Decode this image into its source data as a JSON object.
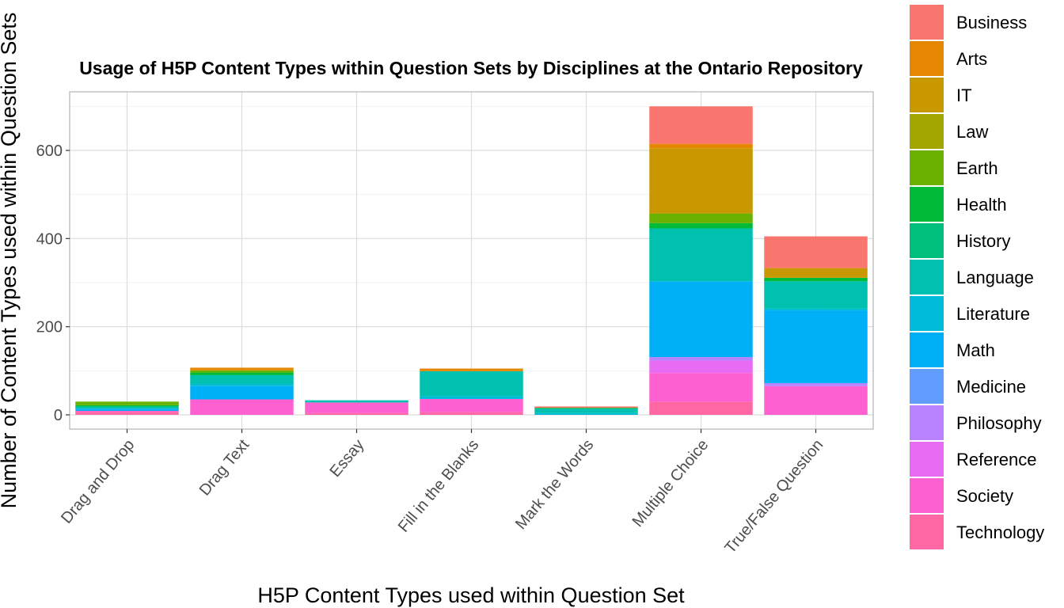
{
  "chart_data": {
    "type": "bar",
    "stacked": true,
    "title": "Usage of H5P Content Types within Question Sets by Disciplines at the Ontario Repository",
    "xlabel": "H5P Content Types used within Question Set",
    "ylabel": "Number of Content Types used within Question Sets",
    "ylim": [
      -35,
      730
    ],
    "yticks": [
      0,
      200,
      400,
      600
    ],
    "grid": true,
    "legend_position": "right",
    "categories": [
      "Drag and Drop",
      "Drag Text",
      "Essay",
      "Fill in the Blanks",
      "Mark the Words",
      "Multiple Choice",
      "True/False Question"
    ],
    "series": [
      {
        "name": "Business",
        "color": "#F8766D",
        "values": [
          0,
          0,
          0,
          0,
          3,
          85,
          72
        ]
      },
      {
        "name": "Arts",
        "color": "#E58700",
        "values": [
          0,
          6,
          0,
          6,
          0,
          10,
          0
        ]
      },
      {
        "name": "IT",
        "color": "#C99800",
        "values": [
          0,
          0,
          0,
          0,
          0,
          148,
          22
        ]
      },
      {
        "name": "Law",
        "color": "#A3A500",
        "values": [
          0,
          0,
          0,
          0,
          0,
          0,
          0
        ]
      },
      {
        "name": "Earth",
        "color": "#6BB100",
        "values": [
          8,
          5,
          0,
          0,
          0,
          22,
          0
        ]
      },
      {
        "name": "Health",
        "color": "#00BA38",
        "values": [
          3,
          6,
          0,
          0,
          2,
          12,
          8
        ]
      },
      {
        "name": "History",
        "color": "#00BF7D",
        "values": [
          0,
          0,
          0,
          0,
          0,
          0,
          0
        ]
      },
      {
        "name": "Language",
        "color": "#00C0AF",
        "values": [
          5,
          20,
          5,
          57,
          10,
          120,
          62
        ]
      },
      {
        "name": "Literature",
        "color": "#00BCD8",
        "values": [
          0,
          5,
          0,
          6,
          4,
          0,
          4
        ]
      },
      {
        "name": "Math",
        "color": "#00B0F6",
        "values": [
          5,
          30,
          0,
          0,
          0,
          172,
          165
        ]
      },
      {
        "name": "Medicine",
        "color": "#619CFF",
        "values": [
          0,
          0,
          0,
          0,
          0,
          0,
          0
        ]
      },
      {
        "name": "Philosophy",
        "color": "#B983FF",
        "values": [
          0,
          0,
          0,
          0,
          0,
          8,
          7
        ]
      },
      {
        "name": "Reference",
        "color": "#E76BF3",
        "values": [
          0,
          0,
          0,
          0,
          0,
          28,
          0
        ]
      },
      {
        "name": "Society",
        "color": "#FD61D1",
        "values": [
          2,
          35,
          24,
          30,
          0,
          65,
          65
        ]
      },
      {
        "name": "Technology",
        "color": "#FF67A4",
        "values": [
          7,
          0,
          4,
          6,
          0,
          30,
          0
        ]
      }
    ]
  }
}
